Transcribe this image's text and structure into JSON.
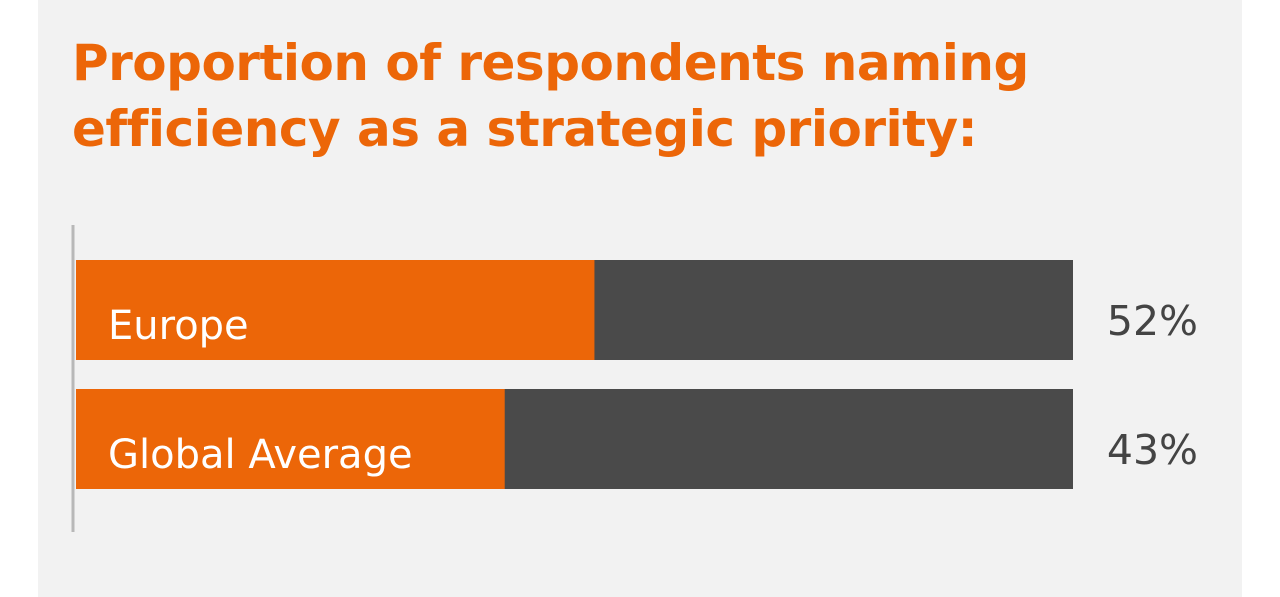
{
  "colors": {
    "accent": "#ec6608",
    "track": "#4a4a4a",
    "panel": "#f2f2f2",
    "axis": "#b8b8b8",
    "value_text": "#444444",
    "bar_text": "#ffffff"
  },
  "chart_data": {
    "type": "bar",
    "orientation": "horizontal",
    "title_lines": [
      "Proportion of respondents naming",
      "efficiency as a strategic priority:"
    ],
    "categories": [
      "Europe",
      "Global Average"
    ],
    "values": [
      52,
      43
    ],
    "value_labels": [
      "52%",
      "43%"
    ],
    "xlim": [
      0,
      100
    ],
    "unit": "%",
    "grid": false,
    "legend": "none"
  }
}
